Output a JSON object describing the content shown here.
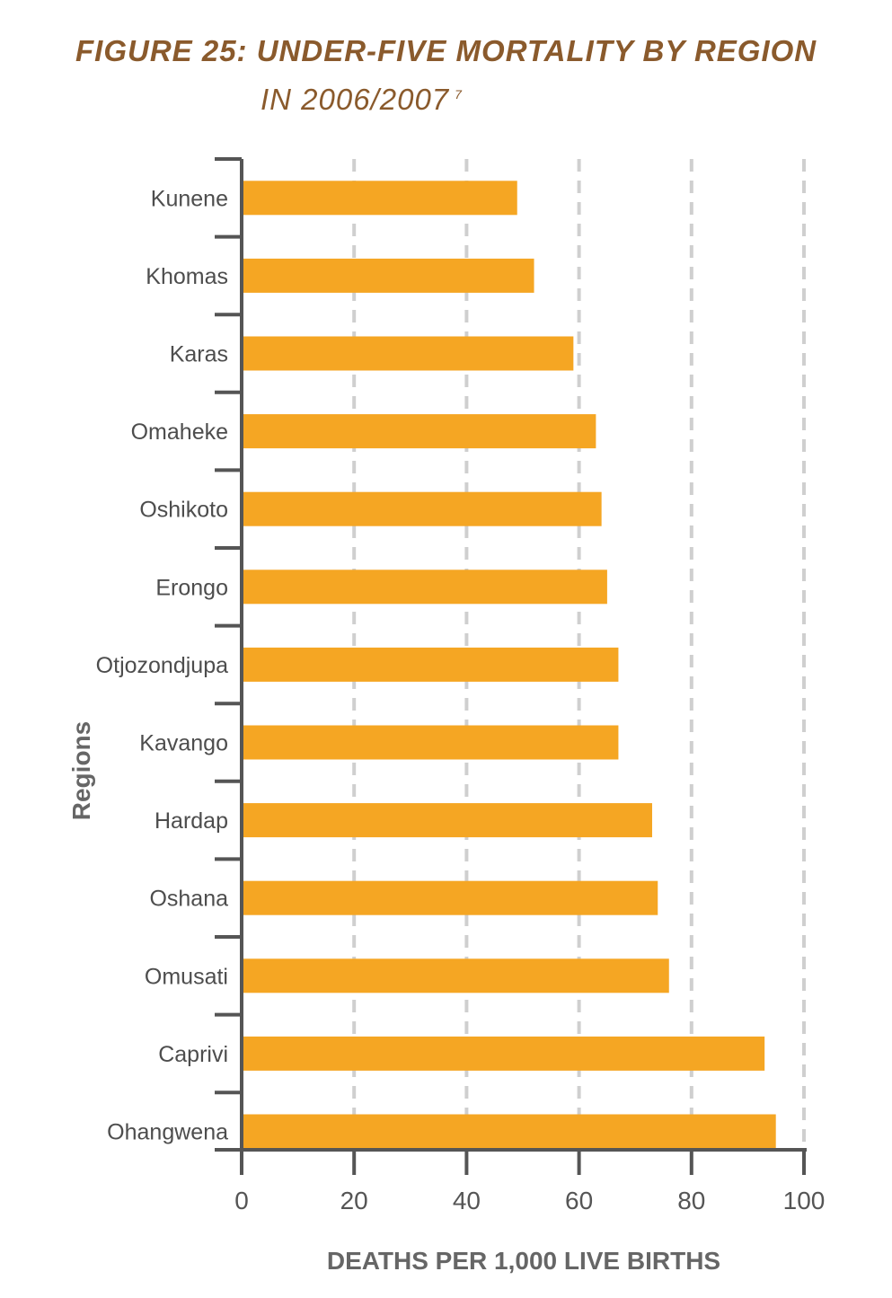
{
  "chart_data": {
    "type": "bar",
    "orientation": "horizontal",
    "title_line_1": "FIGURE 25: UNDER-FIVE MORTALITY BY REGION",
    "title_line_2": "IN 2006/2007",
    "title_superscript": "7",
    "xlabel": "DEATHS PER 1,000 LIVE BIRTHS",
    "ylabel": "Regions",
    "xlim": [
      0,
      100
    ],
    "xticks": [
      "0",
      "20",
      "40",
      "60",
      "80",
      "100"
    ],
    "grid": "vertical dashed",
    "categories": [
      "Kunene",
      "Khomas",
      "Karas",
      "Omaheke",
      "Oshikoto",
      "Erongo",
      "Otjozondjupa",
      "Kavango",
      "Hardap",
      "Oshana",
      "Omusati",
      "Caprivi",
      "Ohangwena"
    ],
    "values": [
      49,
      52,
      59,
      63,
      64,
      65,
      67,
      67,
      73,
      74,
      76,
      93,
      95
    ],
    "colors": {
      "bar": "#f5a623",
      "axis": "#555555",
      "grid": "#cfcfcf",
      "title": "#8a5a2c"
    }
  }
}
